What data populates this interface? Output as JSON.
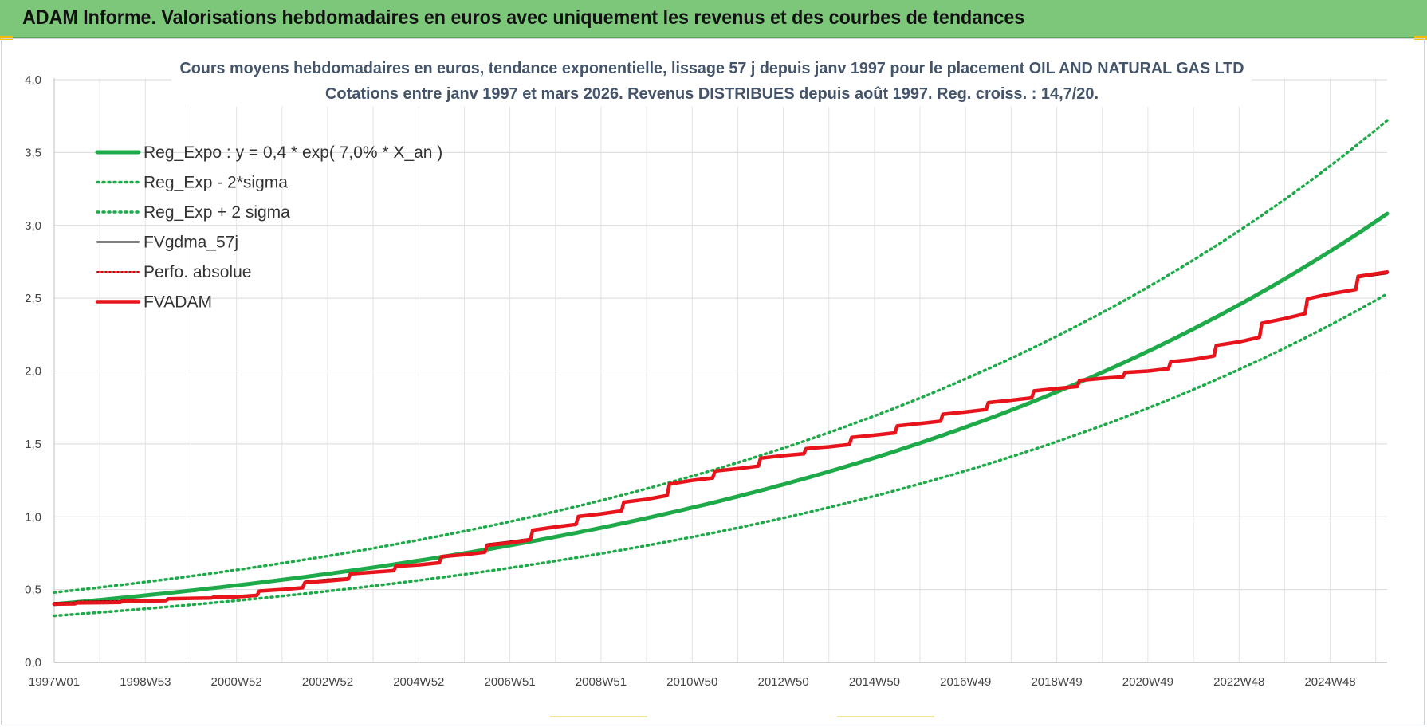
{
  "banner": {
    "title": "ADAM Informe. Valorisations hebdomadaires en euros avec uniquement les revenus et des courbes de tendances"
  },
  "colors": {
    "banner_bg": "#7dc77a",
    "trend": "#1faa4a",
    "fv57": "#000000",
    "perfo": "#e00000",
    "fvadam": "#e8141b",
    "title_text": "#44546a"
  },
  "chart_data": {
    "type": "line",
    "title": "Cours moyens hebdomadaires en euros, tendance exponentielle, lissage 57 j depuis janv 1997 pour le placement OIL AND NATURAL GAS LTD",
    "subtitle": "Cotations entre janv 1997 et mars 2026. Revenus DISTRIBUES depuis août 1997. Reg. croiss. : 14,7/20.",
    "xlabel": "",
    "ylabel": "",
    "x_ticks": [
      "1997W01",
      "1998W53",
      "2000W52",
      "2002W52",
      "2004W52",
      "2006W51",
      "2008W51",
      "2010W50",
      "2012W50",
      "2014W50",
      "2016W49",
      "2018W49",
      "2020W49",
      "2022W48",
      "2024W48"
    ],
    "x_range_years": [
      1997.0,
      2026.25
    ],
    "y_ticks": [
      "0,0",
      "0,5",
      "1,0",
      "1,5",
      "2,0",
      "2,5",
      "3,0",
      "3,5",
      "4,0"
    ],
    "ylim": [
      0,
      4
    ],
    "grid": true,
    "legend_position": "top-left",
    "series": [
      {
        "name": "Reg_Expo : y = 0,4 * exp( 7,0% *  X_an )",
        "style": "solid-thick",
        "x": [
          1997.0,
          2000.0,
          2003.0,
          2006.0,
          2009.0,
          2012.0,
          2015.0,
          2018.0,
          2021.0,
          2024.0,
          2026.25
        ],
        "y": [
          0.4,
          0.49,
          0.6,
          0.74,
          0.9,
          1.11,
          1.36,
          1.66,
          2.04,
          2.5,
          3.08
        ]
      },
      {
        "name": "Reg_Exp - 2*sigma",
        "style": "dotted",
        "x": [
          1997.0,
          2000.0,
          2003.0,
          2006.0,
          2009.0,
          2012.0,
          2015.0,
          2018.0,
          2021.0,
          2024.0,
          2026.25
        ],
        "y": [
          0.32,
          0.4,
          0.49,
          0.6,
          0.74,
          0.91,
          1.11,
          1.37,
          1.67,
          2.06,
          2.53
        ]
      },
      {
        "name": "Reg_Exp + 2 sigma",
        "style": "dotted",
        "x": [
          1997.0,
          2000.0,
          2003.0,
          2006.0,
          2009.0,
          2012.0,
          2015.0,
          2018.0,
          2021.0,
          2024.0,
          2026.25
        ],
        "y": [
          0.48,
          0.58,
          0.72,
          0.88,
          1.08,
          1.33,
          1.63,
          2.0,
          2.45,
          3.01,
          3.72
        ]
      },
      {
        "name": "FVgdma_57j",
        "style": "solid",
        "x": [
          1997.0,
          1998.0,
          1999.0,
          2000.0,
          2001.0,
          2002.0,
          2003.0,
          2004.0,
          2005.0,
          2006.0,
          2007.0,
          2008.0,
          2009.0,
          2010.0,
          2011.0,
          2012.0,
          2013.0,
          2014.0,
          2015.0,
          2016.0,
          2017.0,
          2018.0,
          2019.0,
          2020.0,
          2021.0,
          2022.0,
          2023.0,
          2024.0,
          2025.0,
          2026.25
        ],
        "y": [
          0.41,
          0.42,
          0.43,
          0.44,
          0.45,
          0.5,
          0.57,
          0.62,
          0.67,
          0.74,
          0.83,
          0.93,
          1.02,
          1.12,
          1.25,
          1.33,
          1.42,
          1.48,
          1.56,
          1.64,
          1.72,
          1.8,
          1.88,
          1.95,
          2.0,
          2.08,
          2.2,
          2.36,
          2.53,
          2.67
        ]
      },
      {
        "name": "Perfo. absolue",
        "style": "dotted",
        "x": [
          1997.0,
          1998.0,
          1999.0,
          2000.0,
          2001.0,
          2002.0,
          2003.0,
          2004.0,
          2005.0,
          2006.0,
          2007.0,
          2008.0,
          2009.0,
          2010.0,
          2011.0,
          2012.0,
          2013.0,
          2014.0,
          2015.0,
          2016.0,
          2017.0,
          2018.0,
          2019.0,
          2020.0,
          2021.0,
          2022.0,
          2023.0,
          2024.0,
          2025.0,
          2026.25
        ],
        "y": [
          0.41,
          0.42,
          0.43,
          0.44,
          0.45,
          0.5,
          0.57,
          0.62,
          0.67,
          0.74,
          0.83,
          0.93,
          1.02,
          1.12,
          1.25,
          1.33,
          1.42,
          1.48,
          1.56,
          1.64,
          1.72,
          1.8,
          1.88,
          1.95,
          2.0,
          2.08,
          2.2,
          2.36,
          2.53,
          2.67
        ]
      },
      {
        "name": "FVADAM",
        "style": "solid-thick",
        "x": [
          1997.0,
          1998.0,
          1999.0,
          2000.0,
          2001.0,
          2002.0,
          2003.0,
          2004.0,
          2005.0,
          2006.0,
          2007.0,
          2008.0,
          2009.0,
          2010.0,
          2011.0,
          2012.0,
          2013.0,
          2014.0,
          2015.0,
          2016.0,
          2017.0,
          2018.0,
          2019.0,
          2020.0,
          2021.0,
          2022.0,
          2023.0,
          2024.0,
          2025.0,
          2026.25
        ],
        "y": [
          0.4,
          0.41,
          0.42,
          0.44,
          0.45,
          0.5,
          0.56,
          0.62,
          0.67,
          0.74,
          0.82,
          0.93,
          1.02,
          1.12,
          1.25,
          1.33,
          1.42,
          1.48,
          1.56,
          1.64,
          1.72,
          1.8,
          1.88,
          1.95,
          2.0,
          2.08,
          2.2,
          2.36,
          2.53,
          2.68
        ]
      }
    ]
  }
}
